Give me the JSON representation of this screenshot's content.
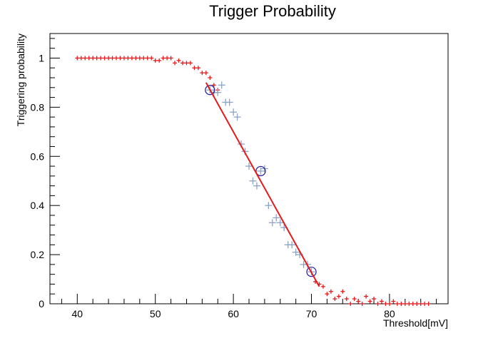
{
  "chart_data": {
    "type": "scatter",
    "title": "Trigger Probability",
    "xlabel": "Threshold[mV]",
    "ylabel": "Triggering probability",
    "xlim": [
      36.5,
      87.5
    ],
    "ylim": [
      0,
      1.1
    ],
    "x_ticks": [
      "40",
      "50",
      "60",
      "70",
      "80"
    ],
    "y_ticks": [
      "0",
      "0.2",
      "0.4",
      "0.6",
      "0.8",
      "1"
    ],
    "grid": false,
    "legend": "none",
    "series": [
      {
        "marker": "small-cross",
        "color": "#e41a1c",
        "x": [
          40,
          40.5,
          41,
          41.5,
          42,
          42.5,
          43,
          43.5,
          44,
          44.5,
          45,
          45.5,
          46,
          46.5,
          47,
          47.5,
          48,
          48.5,
          49,
          49.5,
          50,
          50.5,
          51,
          51.5,
          52,
          52.5,
          53,
          53.5,
          54,
          54.5,
          55,
          55.5,
          56,
          56.5,
          57,
          57.5,
          58,
          70.5,
          71,
          71.5,
          72,
          72.5,
          73,
          73.5,
          74,
          74.5,
          75,
          75.5,
          76,
          76.5,
          77,
          77.5,
          78,
          78.5,
          79,
          79.5,
          80,
          80.5,
          81,
          81.5,
          82,
          82.5,
          83,
          83.5,
          84,
          84.5,
          85
        ],
        "y": [
          1,
          1,
          1,
          1,
          1,
          1,
          1,
          1,
          1,
          1,
          1,
          1,
          1,
          1,
          1,
          1,
          1,
          1,
          1,
          1,
          0.99,
          0.99,
          1,
          1,
          1,
          0.98,
          0.99,
          0.98,
          0.98,
          0.98,
          0.96,
          0.96,
          0.94,
          0.94,
          0.92,
          0.89,
          0.87,
          0.09,
          0.08,
          0.07,
          0.04,
          0.05,
          0.02,
          0.03,
          0.05,
          0.02,
          0,
          0.02,
          0.01,
          0,
          0.03,
          0.01,
          0.02,
          0,
          0.01,
          0,
          0,
          0.01,
          0,
          0,
          0,
          0,
          0,
          0,
          0,
          0,
          0
        ]
      },
      {
        "marker": "large-cross",
        "color": "#8aa4c8",
        "x": [
          57,
          57.5,
          58,
          58.5,
          59,
          59.5,
          60,
          60.5,
          61,
          61.5,
          62,
          62.5,
          63,
          63.5,
          64,
          64.5,
          65,
          65.5,
          66,
          66.5,
          67,
          67.5,
          68,
          68.5,
          69,
          69.5,
          70
        ],
        "y": [
          0.87,
          0.86,
          0.86,
          0.89,
          0.82,
          0.82,
          0.78,
          0.76,
          0.65,
          0.62,
          0.56,
          0.5,
          0.48,
          0.54,
          0.55,
          0.4,
          0.33,
          0.35,
          0.33,
          0.31,
          0.24,
          0.24,
          0.21,
          0.2,
          0.16,
          0.16,
          0.13
        ]
      },
      {
        "marker": "circle",
        "color": "#1a1aa0",
        "x": [
          57,
          63.5,
          70
        ],
        "y": [
          0.87,
          0.54,
          0.13
        ]
      },
      {
        "marker": "line",
        "color": "#e41a1c",
        "x": [
          56.5,
          71
        ],
        "y": [
          0.9,
          0.07
        ]
      }
    ]
  }
}
